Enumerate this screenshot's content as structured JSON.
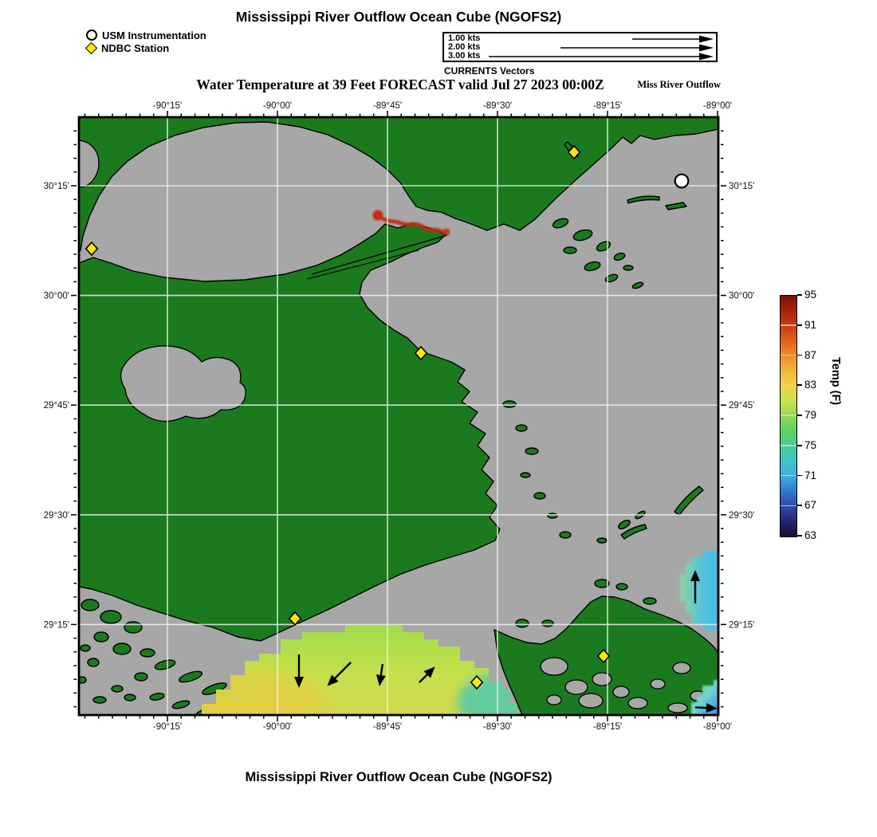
{
  "figure": {
    "title": "Mississippi River Outflow Ocean Cube (NGOFS2)",
    "subtitle": "Water Temperature at 39 Feet FORECAST valid Jul 27 2023 00:00Z",
    "region_label": "Miss River Outflow",
    "footer_title": "Mississippi River Outflow Ocean Cube (NGOFS2)"
  },
  "legend": {
    "usm_label": "USM Instrumentation",
    "ndbc_label": "NDBC Station"
  },
  "currents_legend": {
    "caption": "CURRENTS Vectors",
    "rows": [
      "1.00 kts",
      "2.00 kts",
      "3.00 kts"
    ]
  },
  "map": {
    "x_axis_labels": [
      "-90°15'",
      "-90°00'",
      "-89°45'",
      "-89°30'",
      "-89°15'",
      "-89°00'"
    ],
    "y_axis_labels": [
      "30°15'",
      "30°00'",
      "29°45'",
      "29°30'",
      "29°15'"
    ],
    "colors": {
      "land": "#1b7a1e",
      "water_no_data": "#a7a7a7",
      "coastline": "#000000",
      "gridline": "#e9e9e9",
      "ndbc_marker": "#ffe800",
      "usm_marker": "#ffffff",
      "hot_river": "#c5290f"
    },
    "stations": {
      "ndbc": [
        {
          "approx_lon": -90.42,
          "approx_lat": 30.1
        },
        {
          "approx_lon": -89.33,
          "approx_lat": 30.32
        },
        {
          "approx_lon": -89.67,
          "approx_lat": 29.87
        },
        {
          "approx_lon": -89.96,
          "approx_lat": 29.26
        },
        {
          "approx_lon": -89.55,
          "approx_lat": 29.12
        },
        {
          "approx_lon": -89.26,
          "approx_lat": 29.18
        }
      ],
      "usm": [
        {
          "approx_lon": -89.08,
          "approx_lat": 30.26
        }
      ]
    },
    "temperature_features": [
      {
        "name": "gulf-outflow-plume",
        "approx_temp_f": "79-82",
        "location": "bottom center, offshore of delta coast"
      },
      {
        "name": "pearl-river-channel",
        "approx_temp_f": "93-95",
        "location": "top center (Rigolets channel)"
      },
      {
        "name": "east-edge-cool-patch",
        "approx_temp_f": "70-74",
        "location": "right edge near 29°20'"
      },
      {
        "name": "southeast-corner-cool-patch",
        "approx_temp_f": "66-72",
        "location": "bottom right corner"
      }
    ],
    "current_vectors": [
      {
        "direction": "S"
      },
      {
        "direction": "SW"
      },
      {
        "direction": "S"
      },
      {
        "direction": "NE"
      },
      {
        "direction": "N"
      },
      {
        "direction": "E"
      }
    ]
  },
  "colorbar": {
    "title": "Temp (F)",
    "tick_labels": [
      "95",
      "91",
      "87",
      "83",
      "79",
      "75",
      "71",
      "67",
      "63"
    ],
    "min": 63,
    "max": 95
  }
}
